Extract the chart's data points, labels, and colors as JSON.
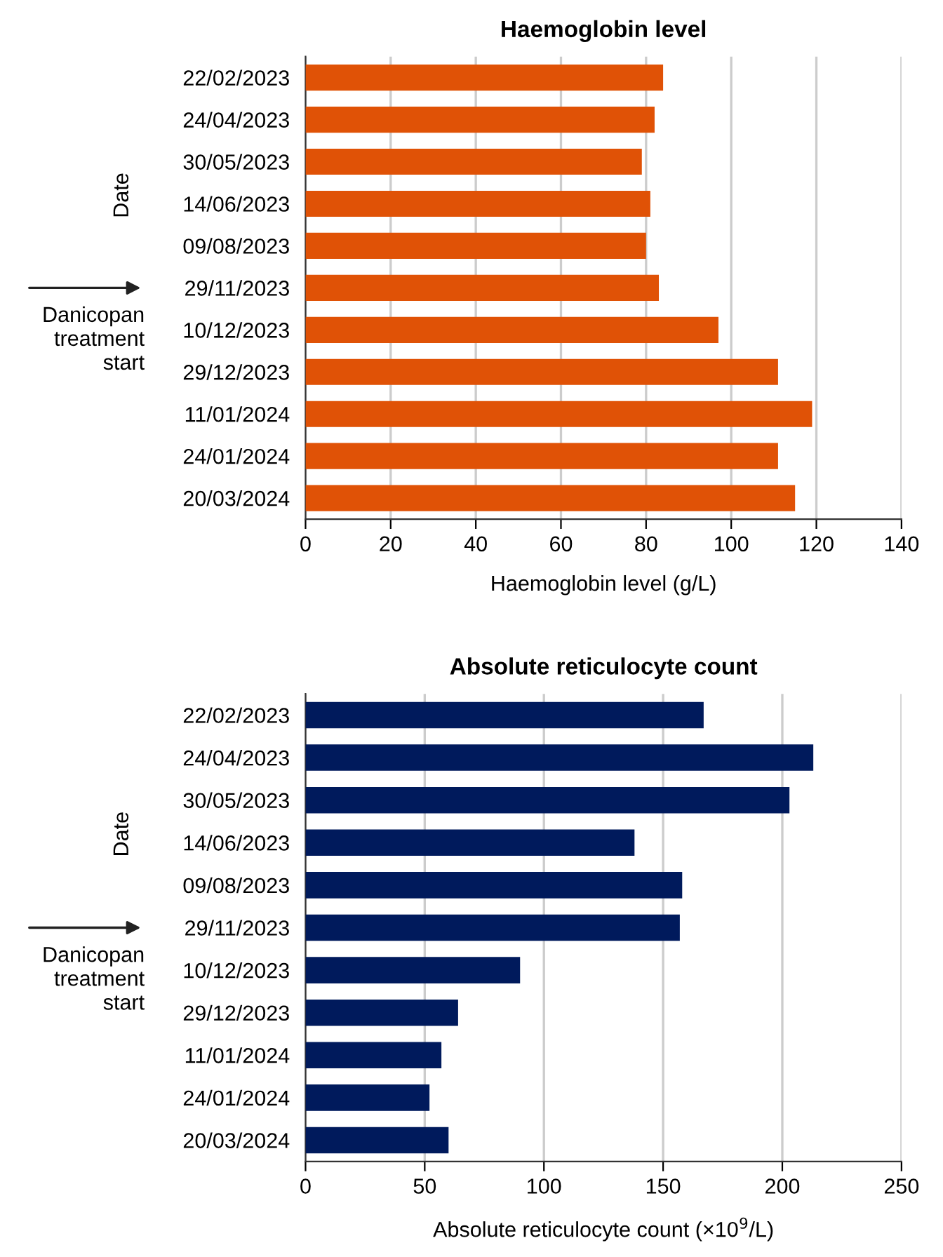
{
  "chart_data": [
    {
      "type": "bar",
      "orientation": "horizontal",
      "title": "Haemoglobin level",
      "xlabel": "Haemoglobin level (g/L)",
      "ylabel": "Date",
      "categories": [
        "22/02/2023",
        "24/04/2023",
        "30/05/2023",
        "14/06/2023",
        "09/08/2023",
        "29/11/2023",
        "10/12/2023",
        "29/12/2023",
        "11/01/2024",
        "24/01/2024",
        "20/03/2024"
      ],
      "values": [
        84,
        82,
        79,
        81,
        80,
        83,
        97,
        111,
        119,
        111,
        115
      ],
      "color": "#e05206",
      "xlim": [
        0,
        140
      ],
      "xticks": [
        0,
        20,
        40,
        60,
        80,
        100,
        120,
        140
      ],
      "grid": "x",
      "legend": false,
      "annotations": [
        "Danicopan\ntreatment\nstart"
      ]
    },
    {
      "type": "bar",
      "orientation": "horizontal",
      "title": "Absolute reticulocyte count",
      "xlabel": "Absolute reticulocyte count (×10$^{9}$/L)",
      "ylabel": "Date",
      "categories": [
        "22/02/2023",
        "24/04/2023",
        "30/05/2023",
        "14/06/2023",
        "09/08/2023",
        "29/11/2023",
        "10/12/2023",
        "29/12/2023",
        "11/01/2024",
        "24/01/2024",
        "20/03/2024"
      ],
      "values": [
        167,
        213,
        203,
        138,
        158,
        157,
        90,
        64,
        57,
        52,
        60
      ],
      "color": "#001a5c",
      "xlim": [
        0,
        250
      ],
      "xticks": [
        0,
        50,
        100,
        150,
        200,
        250
      ],
      "grid": "x",
      "legend": false,
      "annotations": [
        "Danicopan\ntreatment\nstart"
      ]
    }
  ]
}
